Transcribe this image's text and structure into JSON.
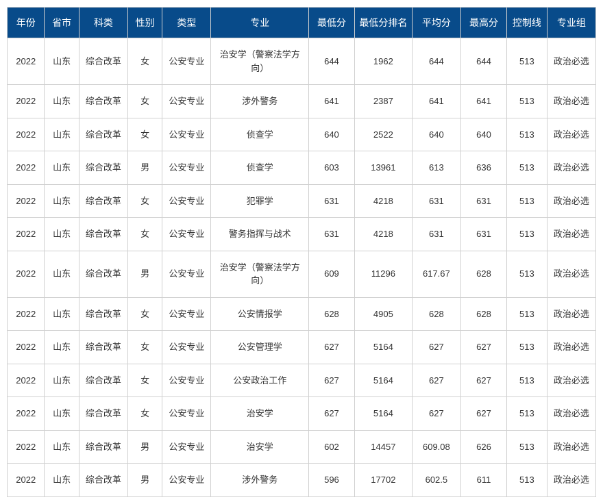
{
  "table": {
    "header_bg": "#084b8a",
    "header_fg": "#ffffff",
    "border_color": "#d0d0d0",
    "cell_fg": "#333333",
    "columns": [
      {
        "key": "year",
        "label": "年份"
      },
      {
        "key": "prov",
        "label": "省市"
      },
      {
        "key": "subj",
        "label": "科类"
      },
      {
        "key": "sex",
        "label": "性别"
      },
      {
        "key": "type",
        "label": "类型"
      },
      {
        "key": "major",
        "label": "专业"
      },
      {
        "key": "min",
        "label": "最低分"
      },
      {
        "key": "rank",
        "label": "最低分排名"
      },
      {
        "key": "avg",
        "label": "平均分"
      },
      {
        "key": "max",
        "label": "最高分"
      },
      {
        "key": "ctrl",
        "label": "控制线"
      },
      {
        "key": "group",
        "label": "专业组"
      }
    ],
    "rows": [
      {
        "year": "2022",
        "prov": "山东",
        "subj": "综合改革",
        "sex": "女",
        "type": "公安专业",
        "major": "治安学（警察法学方向）",
        "min": "644",
        "rank": "1962",
        "avg": "644",
        "max": "644",
        "ctrl": "513",
        "group": "政治必选"
      },
      {
        "year": "2022",
        "prov": "山东",
        "subj": "综合改革",
        "sex": "女",
        "type": "公安专业",
        "major": "涉外警务",
        "min": "641",
        "rank": "2387",
        "avg": "641",
        "max": "641",
        "ctrl": "513",
        "group": "政治必选"
      },
      {
        "year": "2022",
        "prov": "山东",
        "subj": "综合改革",
        "sex": "女",
        "type": "公安专业",
        "major": "侦查学",
        "min": "640",
        "rank": "2522",
        "avg": "640",
        "max": "640",
        "ctrl": "513",
        "group": "政治必选"
      },
      {
        "year": "2022",
        "prov": "山东",
        "subj": "综合改革",
        "sex": "男",
        "type": "公安专业",
        "major": "侦查学",
        "min": "603",
        "rank": "13961",
        "avg": "613",
        "max": "636",
        "ctrl": "513",
        "group": "政治必选"
      },
      {
        "year": "2022",
        "prov": "山东",
        "subj": "综合改革",
        "sex": "女",
        "type": "公安专业",
        "major": "犯罪学",
        "min": "631",
        "rank": "4218",
        "avg": "631",
        "max": "631",
        "ctrl": "513",
        "group": "政治必选"
      },
      {
        "year": "2022",
        "prov": "山东",
        "subj": "综合改革",
        "sex": "女",
        "type": "公安专业",
        "major": "警务指挥与战术",
        "min": "631",
        "rank": "4218",
        "avg": "631",
        "max": "631",
        "ctrl": "513",
        "group": "政治必选"
      },
      {
        "year": "2022",
        "prov": "山东",
        "subj": "综合改革",
        "sex": "男",
        "type": "公安专业",
        "major": "治安学（警察法学方向）",
        "min": "609",
        "rank": "11296",
        "avg": "617.67",
        "max": "628",
        "ctrl": "513",
        "group": "政治必选"
      },
      {
        "year": "2022",
        "prov": "山东",
        "subj": "综合改革",
        "sex": "女",
        "type": "公安专业",
        "major": "公安情报学",
        "min": "628",
        "rank": "4905",
        "avg": "628",
        "max": "628",
        "ctrl": "513",
        "group": "政治必选"
      },
      {
        "year": "2022",
        "prov": "山东",
        "subj": "综合改革",
        "sex": "女",
        "type": "公安专业",
        "major": "公安管理学",
        "min": "627",
        "rank": "5164",
        "avg": "627",
        "max": "627",
        "ctrl": "513",
        "group": "政治必选"
      },
      {
        "year": "2022",
        "prov": "山东",
        "subj": "综合改革",
        "sex": "女",
        "type": "公安专业",
        "major": "公安政治工作",
        "min": "627",
        "rank": "5164",
        "avg": "627",
        "max": "627",
        "ctrl": "513",
        "group": "政治必选"
      },
      {
        "year": "2022",
        "prov": "山东",
        "subj": "综合改革",
        "sex": "女",
        "type": "公安专业",
        "major": "治安学",
        "min": "627",
        "rank": "5164",
        "avg": "627",
        "max": "627",
        "ctrl": "513",
        "group": "政治必选"
      },
      {
        "year": "2022",
        "prov": "山东",
        "subj": "综合改革",
        "sex": "男",
        "type": "公安专业",
        "major": "治安学",
        "min": "602",
        "rank": "14457",
        "avg": "609.08",
        "max": "626",
        "ctrl": "513",
        "group": "政治必选"
      },
      {
        "year": "2022",
        "prov": "山东",
        "subj": "综合改革",
        "sex": "男",
        "type": "公安专业",
        "major": "涉外警务",
        "min": "596",
        "rank": "17702",
        "avg": "602.5",
        "max": "611",
        "ctrl": "513",
        "group": "政治必选"
      }
    ]
  }
}
